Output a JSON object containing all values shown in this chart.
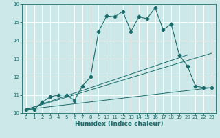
{
  "xlabel": "Humidex (Indice chaleur)",
  "ylabel": "",
  "xlim": [
    -0.5,
    23.5
  ],
  "ylim": [
    10,
    16
  ],
  "xticks": [
    0,
    1,
    2,
    3,
    4,
    5,
    6,
    7,
    8,
    9,
    10,
    11,
    12,
    13,
    14,
    15,
    16,
    17,
    18,
    19,
    20,
    21,
    22,
    23
  ],
  "yticks": [
    10,
    11,
    12,
    13,
    14,
    15,
    16
  ],
  "background_color": "#cce8e8",
  "grid_color": "#ffffff",
  "line_color": "#1a6b6b",
  "line1_x": [
    0,
    1,
    2,
    3,
    4,
    5,
    6,
    7,
    8,
    9,
    10,
    11,
    12,
    13,
    14,
    15,
    16,
    17,
    18,
    19,
    20,
    21,
    22,
    23
  ],
  "line1_y": [
    10.2,
    10.2,
    10.6,
    10.9,
    11.0,
    11.0,
    10.7,
    11.5,
    12.0,
    14.5,
    15.35,
    15.3,
    15.6,
    14.5,
    15.3,
    15.2,
    15.8,
    14.6,
    14.9,
    13.2,
    12.6,
    11.5,
    11.4,
    11.4
  ],
  "line2_x": [
    0,
    23
  ],
  "line2_y": [
    10.2,
    11.4
  ],
  "line3_x": [
    0,
    20
  ],
  "line3_y": [
    10.2,
    13.2
  ],
  "line4_x": [
    0,
    23
  ],
  "line4_y": [
    10.2,
    13.3
  ]
}
